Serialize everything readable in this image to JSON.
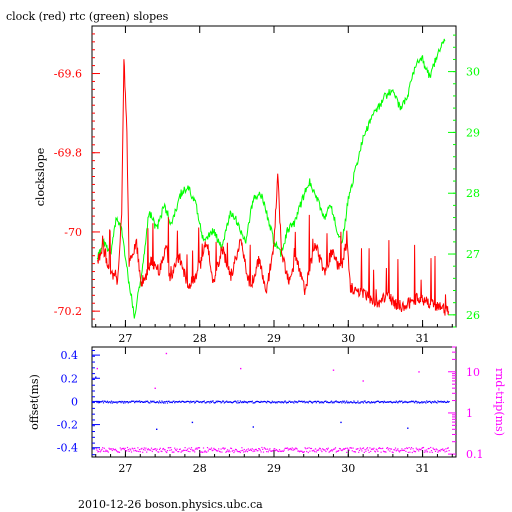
{
  "chart_data": [
    {
      "type": "line",
      "title": "clock (red) rtc (green) slopes",
      "xlabel": "",
      "ylabel": "clockslope",
      "y2label": "",
      "xlim": [
        26.55,
        31.45
      ],
      "ylim": [
        -70.24,
        -69.48
      ],
      "y2lim": [
        25.8,
        30.75
      ],
      "grid": false,
      "x_ticks": [
        "27",
        "28",
        "29",
        "30",
        "31"
      ],
      "y_ticks": [
        "-69.6",
        "-69.8",
        "-70",
        "-70.2"
      ],
      "y2_ticks": [
        "30",
        "29",
        "28",
        "27",
        "26"
      ],
      "colors": {
        "red": "#ff0000",
        "green": "#00ff00",
        "axis": "#000000"
      },
      "series": [
        {
          "axis": "left",
          "color": "#ff0000",
          "points": [
            [
              26.62,
              -70.08
            ],
            [
              26.7,
              -70.04
            ],
            [
              26.8,
              -70.11
            ],
            [
              26.9,
              -70.12
            ],
            [
              26.95,
              -69.95
            ],
            [
              26.98,
              -69.56
            ],
            [
              27.02,
              -69.76
            ],
            [
              27.05,
              -70.08
            ],
            [
              27.15,
              -70.03
            ],
            [
              27.22,
              -70.14
            ],
            [
              27.35,
              -70.07
            ],
            [
              27.45,
              -70.1
            ],
            [
              27.55,
              -70.03
            ],
            [
              27.6,
              -70.12
            ],
            [
              27.72,
              -70.06
            ],
            [
              27.85,
              -70.14
            ],
            [
              27.98,
              -70.1
            ],
            [
              28.1,
              -70.02
            ],
            [
              28.18,
              -70.13
            ],
            [
              28.3,
              -70.04
            ],
            [
              28.42,
              -70.11
            ],
            [
              28.55,
              -70.02
            ],
            [
              28.68,
              -70.14
            ],
            [
              28.8,
              -70.07
            ],
            [
              28.9,
              -70.15
            ],
            [
              29.0,
              -70.03
            ],
            [
              29.05,
              -69.85
            ],
            [
              29.1,
              -70.05
            ],
            [
              29.2,
              -70.13
            ],
            [
              29.3,
              -70.06
            ],
            [
              29.42,
              -70.15
            ],
            [
              29.55,
              -70.03
            ],
            [
              29.68,
              -70.1
            ],
            [
              29.78,
              -70.05
            ],
            [
              29.9,
              -70.1
            ],
            [
              29.98,
              -70.02
            ],
            [
              30.03,
              -70.14
            ],
            [
              30.15,
              -70.15
            ],
            [
              30.3,
              -70.17
            ],
            [
              30.45,
              -70.18
            ],
            [
              30.52,
              -70.15
            ],
            [
              30.62,
              -70.18
            ],
            [
              30.75,
              -70.19
            ],
            [
              30.88,
              -70.17
            ],
            [
              30.98,
              -70.17
            ],
            [
              31.08,
              -70.18
            ],
            [
              31.2,
              -70.19
            ],
            [
              31.35,
              -70.2
            ]
          ]
        },
        {
          "axis": "right",
          "color": "#00ff00",
          "points": [
            [
              26.62,
              26.9
            ],
            [
              26.7,
              27.2
            ],
            [
              26.8,
              27.0
            ],
            [
              26.88,
              27.6
            ],
            [
              26.95,
              27.4
            ],
            [
              27.05,
              26.5
            ],
            [
              27.12,
              26.0
            ],
            [
              27.2,
              26.5
            ],
            [
              27.32,
              27.7
            ],
            [
              27.42,
              27.4
            ],
            [
              27.52,
              27.8
            ],
            [
              27.62,
              27.5
            ],
            [
              27.75,
              28.0
            ],
            [
              27.85,
              28.1
            ],
            [
              27.95,
              27.8
            ],
            [
              28.05,
              27.2
            ],
            [
              28.18,
              27.4
            ],
            [
              28.3,
              27.1
            ],
            [
              28.42,
              27.7
            ],
            [
              28.52,
              27.5
            ],
            [
              28.62,
              27.2
            ],
            [
              28.72,
              27.9
            ],
            [
              28.82,
              28.0
            ],
            [
              28.92,
              27.6
            ],
            [
              29.0,
              27.2
            ],
            [
              29.1,
              27.0
            ],
            [
              29.18,
              27.4
            ],
            [
              29.28,
              27.5
            ],
            [
              29.38,
              27.9
            ],
            [
              29.48,
              28.2
            ],
            [
              29.58,
              27.9
            ],
            [
              29.68,
              27.6
            ],
            [
              29.76,
              27.8
            ],
            [
              29.85,
              27.4
            ],
            [
              29.92,
              27.2
            ],
            [
              30.0,
              27.9
            ],
            [
              30.1,
              28.4
            ],
            [
              30.2,
              28.9
            ],
            [
              30.3,
              29.2
            ],
            [
              30.4,
              29.4
            ],
            [
              30.5,
              29.6
            ],
            [
              30.6,
              29.7
            ],
            [
              30.7,
              29.4
            ],
            [
              30.8,
              29.6
            ],
            [
              30.9,
              30.1
            ],
            [
              31.0,
              30.2
            ],
            [
              31.1,
              29.9
            ],
            [
              31.2,
              30.3
            ],
            [
              31.3,
              30.5
            ]
          ]
        }
      ]
    },
    {
      "type": "scatter",
      "title": "",
      "xlabel": "",
      "ylabel": "offset(ms)",
      "y2label": "rnd-trip(ms)",
      "y2_scale": "log",
      "xlim": [
        26.55,
        31.45
      ],
      "ylim": [
        -0.48,
        0.47
      ],
      "y2lim": [
        0.085,
        40
      ],
      "grid": false,
      "x_ticks": [
        "27",
        "28",
        "29",
        "30",
        "31"
      ],
      "y_ticks": [
        "0.4",
        "0.2",
        "0",
        "-0.2",
        "-0.4"
      ],
      "y2_ticks": [
        "10",
        "1",
        "0.1"
      ],
      "colors": {
        "blue": "#0000ff",
        "magenta": "#ff00ff",
        "axis": "#000000"
      },
      "series": [
        {
          "axis": "left",
          "color": "#0000ff",
          "points": [
            [
              26.6,
              0.0
            ],
            [
              31.35,
              0.0
            ]
          ]
        },
        {
          "axis": "right",
          "color": "#ff00ff",
          "points": [
            [
              26.6,
              0.13
            ],
            [
              31.35,
              0.13
            ]
          ]
        }
      ],
      "outliers": [
        {
          "axis": "right",
          "color": "#ff00ff",
          "points": [
            [
              26.62,
              12
            ],
            [
              27.55,
              28
            ],
            [
              28.55,
              12
            ],
            [
              29.8,
              11
            ],
            [
              30.95,
              10
            ],
            [
              27.4,
              4
            ],
            [
              30.2,
              6
            ]
          ]
        },
        {
          "axis": "left",
          "color": "#0000ff",
          "points": [
            [
              26.6,
              0.21
            ],
            [
              27.42,
              -0.24
            ],
            [
              28.72,
              -0.22
            ],
            [
              29.9,
              -0.18
            ],
            [
              30.8,
              -0.23
            ],
            [
              27.9,
              -0.18
            ]
          ]
        }
      ]
    }
  ],
  "footer": "2010-12-26 boson.physics.ubc.ca"
}
